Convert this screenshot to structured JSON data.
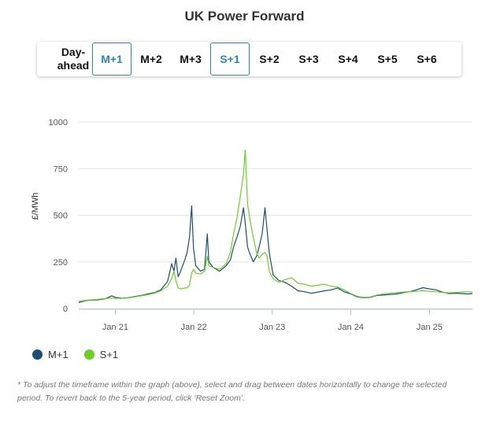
{
  "title": "UK Power Forward",
  "tabs": [
    {
      "label": "Day-ahead",
      "active": false
    },
    {
      "label": "M+1",
      "active": true
    },
    {
      "label": "M+2",
      "active": false
    },
    {
      "label": "M+3",
      "active": false
    },
    {
      "label": "S+1",
      "active": true
    },
    {
      "label": "S+2",
      "active": false
    },
    {
      "label": "S+3",
      "active": false
    },
    {
      "label": "S+4",
      "active": false
    },
    {
      "label": "S+5",
      "active": false
    },
    {
      "label": "S+6",
      "active": false
    }
  ],
  "legend": [
    {
      "label": "M+1",
      "color": "#1b4f72"
    },
    {
      "label": "S+1",
      "color": "#6ccf24"
    }
  ],
  "footnote": "* To adjust the timeframe within the graph (above), select and drag between dates horizontally to change the selected period. To revert back to the 5-year period, click ‘Reset Zoom’.",
  "chart_data": {
    "type": "line",
    "ylabel": "£/MWh",
    "xlabel": "",
    "ylim": [
      0,
      1000
    ],
    "yticks": [
      0,
      250,
      500,
      750,
      1000
    ],
    "xlim": [
      "2020-07-15",
      "2025-07-20"
    ],
    "xticks": [
      {
        "label": "Jan 21",
        "date": "2021-01-01"
      },
      {
        "label": "Jan 22",
        "date": "2022-01-01"
      },
      {
        "label": "Jan 23",
        "date": "2023-01-01"
      },
      {
        "label": "Jan 24",
        "date": "2024-01-01"
      },
      {
        "label": "Jan 25",
        "date": "2025-01-01"
      }
    ],
    "grid": true,
    "series": [
      {
        "name": "M+1",
        "color": "#1b4f72",
        "points": [
          [
            "2020-07-15",
            32
          ],
          [
            "2020-08-15",
            42
          ],
          [
            "2020-09-15",
            45
          ],
          [
            "2020-10-15",
            47
          ],
          [
            "2020-11-15",
            52
          ],
          [
            "2020-12-15",
            68
          ],
          [
            "2021-01-01",
            60
          ],
          [
            "2021-02-01",
            55
          ],
          [
            "2021-03-01",
            58
          ],
          [
            "2021-04-01",
            64
          ],
          [
            "2021-05-01",
            70
          ],
          [
            "2021-06-01",
            78
          ],
          [
            "2021-07-01",
            85
          ],
          [
            "2021-08-01",
            100
          ],
          [
            "2021-09-01",
            145
          ],
          [
            "2021-09-20",
            240
          ],
          [
            "2021-10-01",
            200
          ],
          [
            "2021-10-10",
            270
          ],
          [
            "2021-10-20",
            170
          ],
          [
            "2021-11-01",
            200
          ],
          [
            "2021-11-20",
            260
          ],
          [
            "2021-12-01",
            300
          ],
          [
            "2021-12-12",
            380
          ],
          [
            "2021-12-22",
            550
          ],
          [
            "2021-12-31",
            320
          ],
          [
            "2022-01-10",
            230
          ],
          [
            "2022-02-01",
            200
          ],
          [
            "2022-02-20",
            210
          ],
          [
            "2022-03-05",
            400
          ],
          [
            "2022-03-12",
            250
          ],
          [
            "2022-04-01",
            220
          ],
          [
            "2022-05-01",
            200
          ],
          [
            "2022-06-01",
            230
          ],
          [
            "2022-06-20",
            260
          ],
          [
            "2022-07-05",
            330
          ],
          [
            "2022-07-20",
            380
          ],
          [
            "2022-08-05",
            440
          ],
          [
            "2022-08-20",
            540
          ],
          [
            "2022-08-28",
            460
          ],
          [
            "2022-09-08",
            330
          ],
          [
            "2022-09-20",
            290
          ],
          [
            "2022-10-05",
            250
          ],
          [
            "2022-10-20",
            280
          ],
          [
            "2022-11-01",
            330
          ],
          [
            "2022-11-15",
            400
          ],
          [
            "2022-11-28",
            540
          ],
          [
            "2022-12-08",
            420
          ],
          [
            "2022-12-18",
            300
          ],
          [
            "2023-01-05",
            180
          ],
          [
            "2023-02-01",
            150
          ],
          [
            "2023-03-01",
            140
          ],
          [
            "2023-04-01",
            120
          ],
          [
            "2023-05-01",
            95
          ],
          [
            "2023-06-01",
            90
          ],
          [
            "2023-07-01",
            82
          ],
          [
            "2023-08-01",
            88
          ],
          [
            "2023-09-01",
            95
          ],
          [
            "2023-10-01",
            100
          ],
          [
            "2023-11-01",
            110
          ],
          [
            "2023-12-01",
            90
          ],
          [
            "2024-01-01",
            78
          ],
          [
            "2024-02-01",
            62
          ],
          [
            "2024-03-01",
            58
          ],
          [
            "2024-04-01",
            60
          ],
          [
            "2024-05-01",
            70
          ],
          [
            "2024-06-01",
            72
          ],
          [
            "2024-07-01",
            75
          ],
          [
            "2024-08-01",
            78
          ],
          [
            "2024-09-01",
            85
          ],
          [
            "2024-10-01",
            90
          ],
          [
            "2024-11-01",
            100
          ],
          [
            "2024-12-01",
            112
          ],
          [
            "2025-01-01",
            105
          ],
          [
            "2025-02-01",
            100
          ],
          [
            "2025-03-01",
            88
          ],
          [
            "2025-04-01",
            80
          ],
          [
            "2025-05-01",
            82
          ],
          [
            "2025-06-01",
            80
          ],
          [
            "2025-07-01",
            78
          ],
          [
            "2025-07-20",
            80
          ]
        ]
      },
      {
        "name": "S+1",
        "color": "#6ccf24",
        "points": [
          [
            "2020-07-15",
            38
          ],
          [
            "2020-08-15",
            44
          ],
          [
            "2020-09-15",
            47
          ],
          [
            "2020-10-15",
            50
          ],
          [
            "2020-11-15",
            53
          ],
          [
            "2020-12-15",
            56
          ],
          [
            "2021-01-01",
            55
          ],
          [
            "2021-02-01",
            54
          ],
          [
            "2021-03-01",
            56
          ],
          [
            "2021-04-01",
            62
          ],
          [
            "2021-05-01",
            68
          ],
          [
            "2021-06-01",
            74
          ],
          [
            "2021-07-01",
            82
          ],
          [
            "2021-08-01",
            95
          ],
          [
            "2021-09-01",
            120
          ],
          [
            "2021-09-20",
            160
          ],
          [
            "2021-10-01",
            200
          ],
          [
            "2021-10-10",
            150
          ],
          [
            "2021-10-20",
            110
          ],
          [
            "2021-11-01",
            105
          ],
          [
            "2021-11-20",
            110
          ],
          [
            "2021-12-01",
            110
          ],
          [
            "2021-12-12",
            125
          ],
          [
            "2021-12-22",
            190
          ],
          [
            "2021-12-31",
            210
          ],
          [
            "2022-01-10",
            190
          ],
          [
            "2022-02-01",
            185
          ],
          [
            "2022-02-20",
            200
          ],
          [
            "2022-03-05",
            280
          ],
          [
            "2022-03-12",
            230
          ],
          [
            "2022-04-01",
            220
          ],
          [
            "2022-05-01",
            210
          ],
          [
            "2022-06-01",
            240
          ],
          [
            "2022-06-20",
            300
          ],
          [
            "2022-07-05",
            400
          ],
          [
            "2022-07-20",
            480
          ],
          [
            "2022-08-05",
            600
          ],
          [
            "2022-08-20",
            720
          ],
          [
            "2022-08-28",
            850
          ],
          [
            "2022-09-08",
            560
          ],
          [
            "2022-09-20",
            470
          ],
          [
            "2022-10-05",
            380
          ],
          [
            "2022-10-20",
            300
          ],
          [
            "2022-11-01",
            270
          ],
          [
            "2022-11-15",
            290
          ],
          [
            "2022-11-28",
            300
          ],
          [
            "2022-12-08",
            280
          ],
          [
            "2022-12-18",
            200
          ],
          [
            "2023-01-05",
            160
          ],
          [
            "2023-02-01",
            140
          ],
          [
            "2023-03-01",
            155
          ],
          [
            "2023-04-01",
            165
          ],
          [
            "2023-05-01",
            135
          ],
          [
            "2023-06-01",
            130
          ],
          [
            "2023-07-01",
            120
          ],
          [
            "2023-08-01",
            125
          ],
          [
            "2023-09-01",
            130
          ],
          [
            "2023-10-01",
            120
          ],
          [
            "2023-11-01",
            115
          ],
          [
            "2023-12-01",
            100
          ],
          [
            "2024-01-01",
            80
          ],
          [
            "2024-02-01",
            65
          ],
          [
            "2024-03-01",
            60
          ],
          [
            "2024-04-01",
            62
          ],
          [
            "2024-05-01",
            72
          ],
          [
            "2024-06-01",
            78
          ],
          [
            "2024-07-01",
            82
          ],
          [
            "2024-08-01",
            85
          ],
          [
            "2024-09-01",
            88
          ],
          [
            "2024-10-01",
            90
          ],
          [
            "2024-11-01",
            92
          ],
          [
            "2024-12-01",
            95
          ],
          [
            "2025-01-01",
            92
          ],
          [
            "2025-02-01",
            90
          ],
          [
            "2025-03-01",
            86
          ],
          [
            "2025-04-01",
            84
          ],
          [
            "2025-05-01",
            86
          ],
          [
            "2025-06-01",
            88
          ],
          [
            "2025-07-01",
            90
          ],
          [
            "2025-07-20",
            88
          ]
        ]
      }
    ]
  }
}
